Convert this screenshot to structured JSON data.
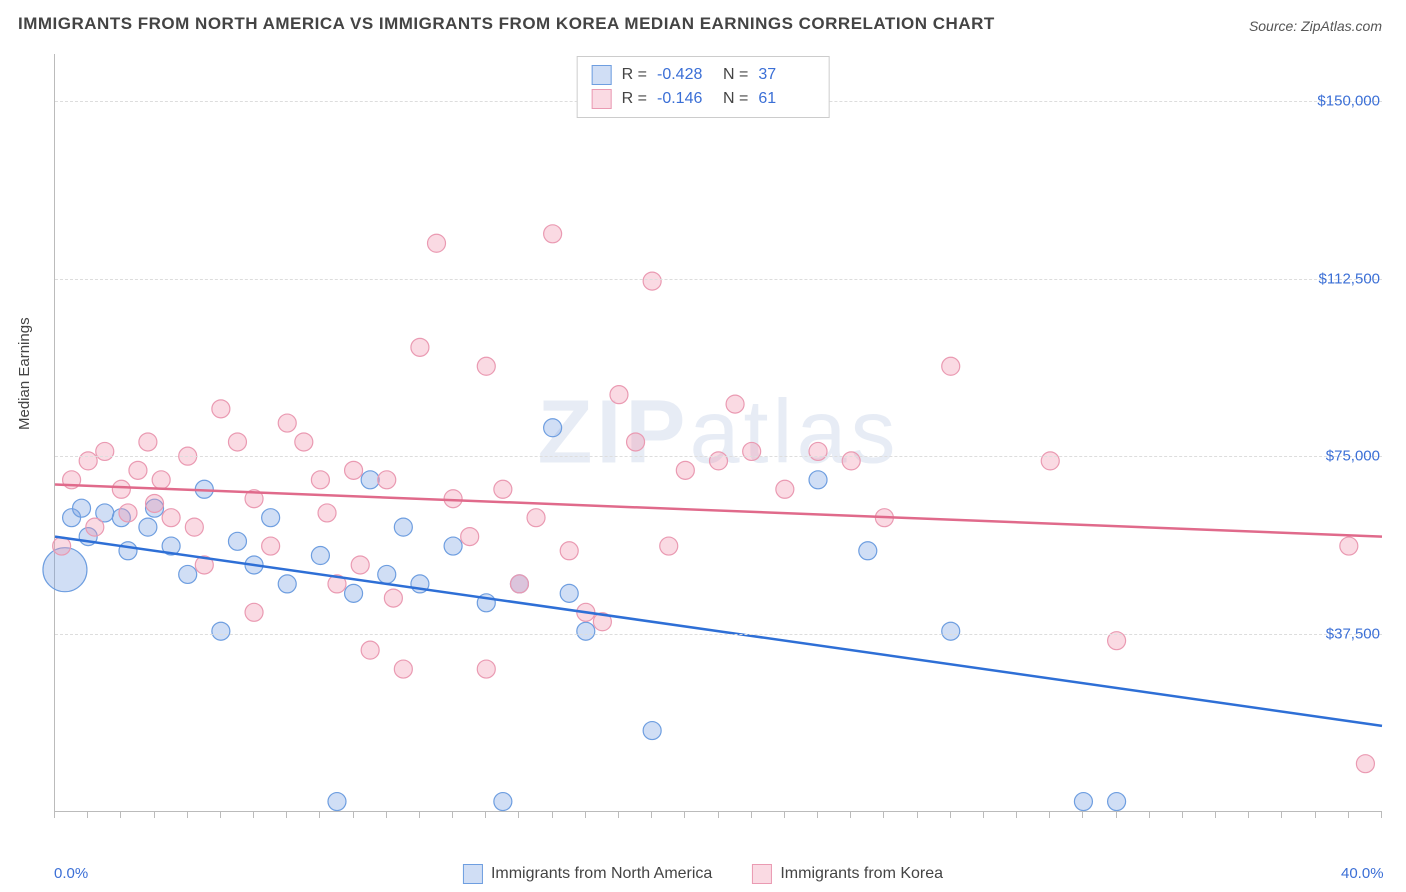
{
  "title": "IMMIGRANTS FROM NORTH AMERICA VS IMMIGRANTS FROM KOREA MEDIAN EARNINGS CORRELATION CHART",
  "source": "Source: ZipAtlas.com",
  "watermark": "ZIPatlas",
  "ylabel": "Median Earnings",
  "chart": {
    "type": "scatter",
    "xlim": [
      0,
      40
    ],
    "ylim": [
      0,
      160000
    ],
    "x_tick_minor_step": 1.0,
    "x_ticks_labeled": [
      {
        "v": 0,
        "label": "0.0%"
      },
      {
        "v": 40,
        "label": "40.0%"
      }
    ],
    "y_ticks": [
      {
        "v": 37500,
        "label": "$37,500"
      },
      {
        "v": 75000,
        "label": "$75,000"
      },
      {
        "v": 112500,
        "label": "$112,500"
      },
      {
        "v": 150000,
        "label": "$150,000"
      }
    ],
    "grid_color": "#dddddd",
    "background_color": "#ffffff",
    "axis_color": "#bbbbbb",
    "tick_label_color": "#3b6fd6",
    "series": [
      {
        "name": "Immigrants from North America",
        "marker_fill": "rgba(120,160,225,0.35)",
        "marker_stroke": "#6e9ee0",
        "line_color": "#2e6fd6",
        "r_value": "-0.428",
        "n_value": "37",
        "trend": {
          "x1": 0,
          "y1": 58000,
          "x2": 40,
          "y2": 18000
        },
        "points": [
          {
            "x": 0.3,
            "y": 51000,
            "r": 22
          },
          {
            "x": 0.5,
            "y": 62000,
            "r": 9
          },
          {
            "x": 0.8,
            "y": 64000,
            "r": 9
          },
          {
            "x": 1.0,
            "y": 58000,
            "r": 9
          },
          {
            "x": 1.5,
            "y": 63000,
            "r": 9
          },
          {
            "x": 2.0,
            "y": 62000,
            "r": 9
          },
          {
            "x": 2.2,
            "y": 55000,
            "r": 9
          },
          {
            "x": 2.8,
            "y": 60000,
            "r": 9
          },
          {
            "x": 3.0,
            "y": 64000,
            "r": 9
          },
          {
            "x": 3.5,
            "y": 56000,
            "r": 9
          },
          {
            "x": 4.0,
            "y": 50000,
            "r": 9
          },
          {
            "x": 4.5,
            "y": 68000,
            "r": 9
          },
          {
            "x": 5.0,
            "y": 38000,
            "r": 9
          },
          {
            "x": 5.5,
            "y": 57000,
            "r": 9
          },
          {
            "x": 6.0,
            "y": 52000,
            "r": 9
          },
          {
            "x": 6.5,
            "y": 62000,
            "r": 9
          },
          {
            "x": 7.0,
            "y": 48000,
            "r": 9
          },
          {
            "x": 8.0,
            "y": 54000,
            "r": 9
          },
          {
            "x": 8.5,
            "y": 2000,
            "r": 9
          },
          {
            "x": 9.0,
            "y": 46000,
            "r": 9
          },
          {
            "x": 9.5,
            "y": 70000,
            "r": 9
          },
          {
            "x": 10.0,
            "y": 50000,
            "r": 9
          },
          {
            "x": 10.5,
            "y": 60000,
            "r": 9
          },
          {
            "x": 11.0,
            "y": 48000,
            "r": 9
          },
          {
            "x": 12.0,
            "y": 56000,
            "r": 9
          },
          {
            "x": 13.0,
            "y": 44000,
            "r": 9
          },
          {
            "x": 13.5,
            "y": 2000,
            "r": 9
          },
          {
            "x": 14.0,
            "y": 48000,
            "r": 9
          },
          {
            "x": 15.0,
            "y": 81000,
            "r": 9
          },
          {
            "x": 15.5,
            "y": 46000,
            "r": 9
          },
          {
            "x": 16.0,
            "y": 38000,
            "r": 9
          },
          {
            "x": 18.0,
            "y": 17000,
            "r": 9
          },
          {
            "x": 23.0,
            "y": 70000,
            "r": 9
          },
          {
            "x": 24.5,
            "y": 55000,
            "r": 9
          },
          {
            "x": 27.0,
            "y": 38000,
            "r": 9
          },
          {
            "x": 31.0,
            "y": 2000,
            "r": 9
          },
          {
            "x": 32.0,
            "y": 2000,
            "r": 9
          }
        ]
      },
      {
        "name": "Immigrants from Korea",
        "marker_fill": "rgba(240,150,175,0.35)",
        "marker_stroke": "#ea9ab2",
        "line_color": "#e06a8b",
        "r_value": "-0.146",
        "n_value": "61",
        "trend": {
          "x1": 0,
          "y1": 69000,
          "x2": 40,
          "y2": 58000
        },
        "points": [
          {
            "x": 0.2,
            "y": 56000,
            "r": 9
          },
          {
            "x": 0.5,
            "y": 70000,
            "r": 9
          },
          {
            "x": 1.0,
            "y": 74000,
            "r": 9
          },
          {
            "x": 1.2,
            "y": 60000,
            "r": 9
          },
          {
            "x": 1.5,
            "y": 76000,
            "r": 9
          },
          {
            "x": 2.0,
            "y": 68000,
            "r": 9
          },
          {
            "x": 2.2,
            "y": 63000,
            "r": 9
          },
          {
            "x": 2.5,
            "y": 72000,
            "r": 9
          },
          {
            "x": 2.8,
            "y": 78000,
            "r": 9
          },
          {
            "x": 3.0,
            "y": 65000,
            "r": 9
          },
          {
            "x": 3.2,
            "y": 70000,
            "r": 9
          },
          {
            "x": 3.5,
            "y": 62000,
            "r": 9
          },
          {
            "x": 4.0,
            "y": 75000,
            "r": 9
          },
          {
            "x": 4.2,
            "y": 60000,
            "r": 9
          },
          {
            "x": 5.0,
            "y": 85000,
            "r": 9
          },
          {
            "x": 5.5,
            "y": 78000,
            "r": 9
          },
          {
            "x": 6.0,
            "y": 66000,
            "r": 9
          },
          {
            "x": 6.5,
            "y": 56000,
            "r": 9
          },
          {
            "x": 7.0,
            "y": 82000,
            "r": 9
          },
          {
            "x": 7.5,
            "y": 78000,
            "r": 9
          },
          {
            "x": 8.0,
            "y": 70000,
            "r": 9
          },
          {
            "x": 8.2,
            "y": 63000,
            "r": 9
          },
          {
            "x": 8.5,
            "y": 48000,
            "r": 9
          },
          {
            "x": 9.0,
            "y": 72000,
            "r": 9
          },
          {
            "x": 9.2,
            "y": 52000,
            "r": 9
          },
          {
            "x": 9.5,
            "y": 34000,
            "r": 9
          },
          {
            "x": 10.0,
            "y": 70000,
            "r": 9
          },
          {
            "x": 10.2,
            "y": 45000,
            "r": 9
          },
          {
            "x": 10.5,
            "y": 30000,
            "r": 9
          },
          {
            "x": 11.0,
            "y": 98000,
            "r": 9
          },
          {
            "x": 11.5,
            "y": 120000,
            "r": 9
          },
          {
            "x": 12.0,
            "y": 66000,
            "r": 9
          },
          {
            "x": 12.5,
            "y": 58000,
            "r": 9
          },
          {
            "x": 13.0,
            "y": 94000,
            "r": 9
          },
          {
            "x": 13.5,
            "y": 68000,
            "r": 9
          },
          {
            "x": 14.0,
            "y": 48000,
            "r": 9
          },
          {
            "x": 14.5,
            "y": 62000,
            "r": 9
          },
          {
            "x": 15.0,
            "y": 122000,
            "r": 9
          },
          {
            "x": 15.5,
            "y": 55000,
            "r": 9
          },
          {
            "x": 16.0,
            "y": 42000,
            "r": 9
          },
          {
            "x": 16.5,
            "y": 40000,
            "r": 9
          },
          {
            "x": 17.0,
            "y": 88000,
            "r": 9
          },
          {
            "x": 17.5,
            "y": 78000,
            "r": 9
          },
          {
            "x": 18.0,
            "y": 112000,
            "r": 9
          },
          {
            "x": 18.5,
            "y": 56000,
            "r": 9
          },
          {
            "x": 19.0,
            "y": 72000,
            "r": 9
          },
          {
            "x": 20.0,
            "y": 74000,
            "r": 9
          },
          {
            "x": 20.5,
            "y": 86000,
            "r": 9
          },
          {
            "x": 21.0,
            "y": 76000,
            "r": 9
          },
          {
            "x": 22.0,
            "y": 68000,
            "r": 9
          },
          {
            "x": 23.0,
            "y": 76000,
            "r": 9
          },
          {
            "x": 24.0,
            "y": 74000,
            "r": 9
          },
          {
            "x": 25.0,
            "y": 62000,
            "r": 9
          },
          {
            "x": 27.0,
            "y": 94000,
            "r": 9
          },
          {
            "x": 30.0,
            "y": 74000,
            "r": 9
          },
          {
            "x": 32.0,
            "y": 36000,
            "r": 9
          },
          {
            "x": 39.0,
            "y": 56000,
            "r": 9
          },
          {
            "x": 39.5,
            "y": 10000,
            "r": 9
          },
          {
            "x": 13.0,
            "y": 30000,
            "r": 9
          },
          {
            "x": 6.0,
            "y": 42000,
            "r": 9
          },
          {
            "x": 4.5,
            "y": 52000,
            "r": 9
          }
        ]
      }
    ]
  },
  "legend": {
    "series1_label": "Immigrants from North America",
    "series2_label": "Immigrants from Korea"
  },
  "stats_legend": {
    "r_label": "R =",
    "n_label": "N ="
  }
}
